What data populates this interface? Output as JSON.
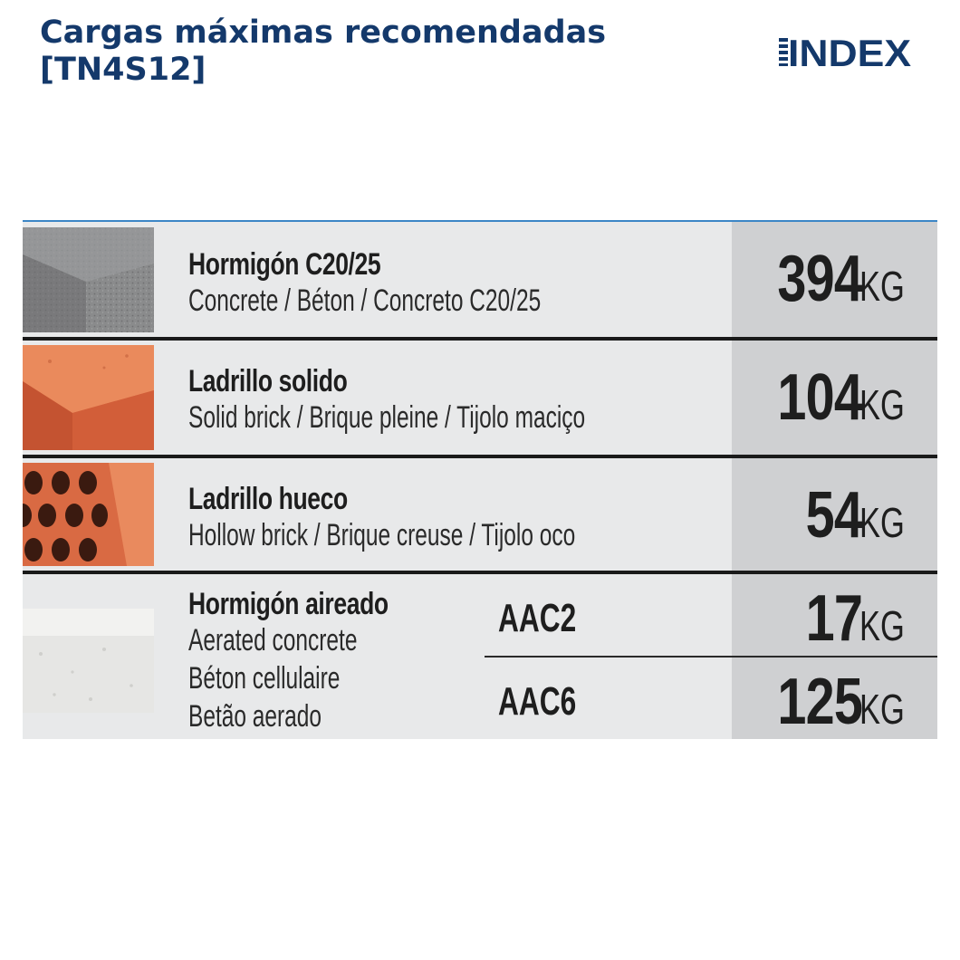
{
  "title": {
    "line1": "Cargas máximas recomendadas",
    "line2": "[TN4S12]"
  },
  "logo": {
    "text": "INDEX"
  },
  "colors": {
    "title": "#14396b",
    "accent_line": "#3c86c6",
    "table_bg": "#e8e9ea",
    "value_bg": "#cfd0d2"
  },
  "rows": [
    {
      "material": "Hormigón  C20/25",
      "translations": "Concrete / Béton / Concreto C20/25",
      "value": "394",
      "unit": "KG",
      "image": "concrete-block"
    },
    {
      "material": "Ladrillo solido",
      "translations": "Solid brick / Brique pleine / Tijolo maciço",
      "value": "104",
      "unit": "KG",
      "image": "solid-brick"
    },
    {
      "material": "Ladrillo hueco",
      "translations": "Hollow brick / Brique creuse / Tijolo oco",
      "value": "54",
      "unit": "KG",
      "image": "hollow-brick"
    }
  ],
  "aerated": {
    "material": "Hormigón aireado",
    "translations": [
      "Aerated concrete",
      "Béton cellulaire",
      "Betão aerado"
    ],
    "image": "aerated-concrete",
    "variants": [
      {
        "label": "AAC2",
        "value": "17",
        "unit": "KG"
      },
      {
        "label": "AAC6",
        "value": "125",
        "unit": "KG"
      }
    ]
  }
}
